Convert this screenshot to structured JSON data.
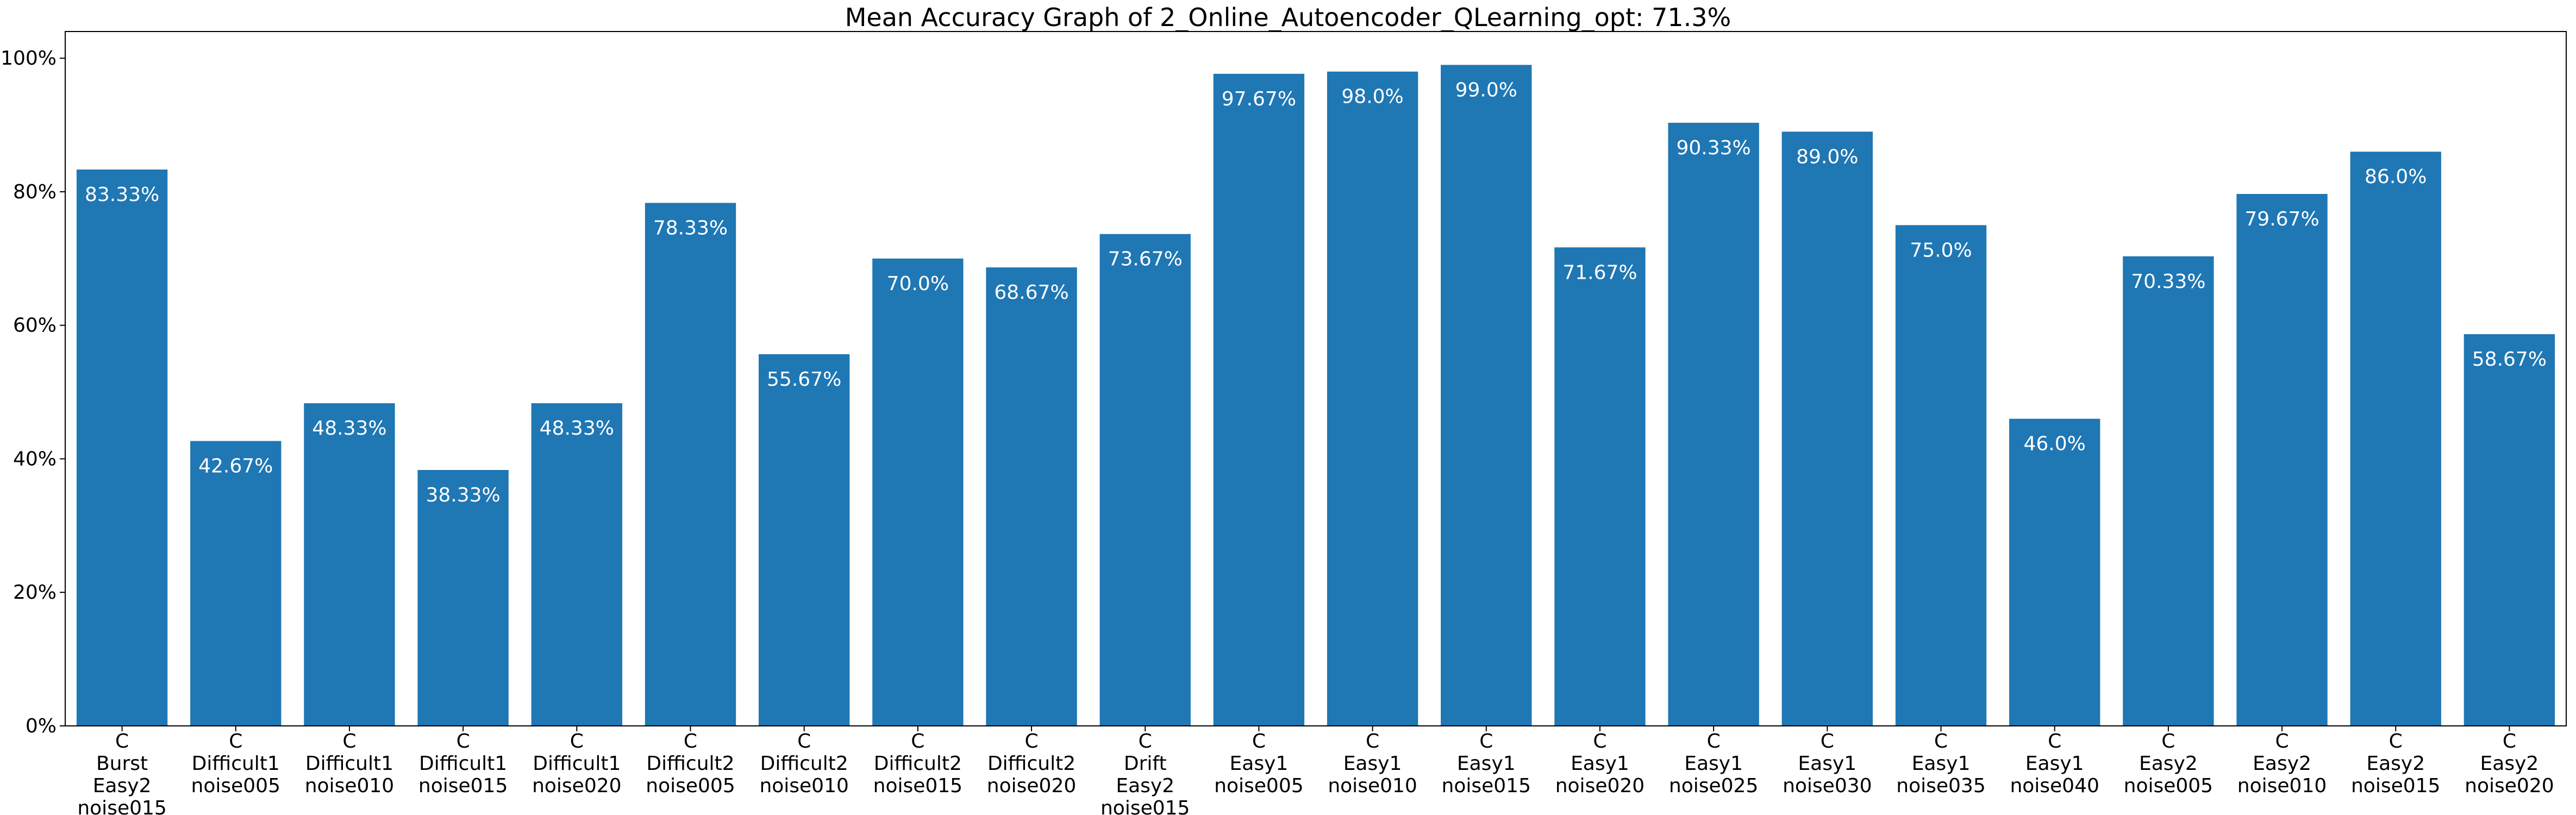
{
  "chart_data": {
    "type": "bar",
    "title": "Mean Accuracy Graph of 2_Online_Autoencoder_QLearning_opt: 71.3%",
    "xlabel": "",
    "ylabel": "",
    "ylim": [
      0,
      104
    ],
    "yticks": [
      0,
      20,
      40,
      60,
      80,
      100
    ],
    "ytick_labels": [
      "0%",
      "20%",
      "40%",
      "60%",
      "80%",
      "100%"
    ],
    "grid": false,
    "bar_color": "#1f77b4",
    "categories": [
      [
        "C",
        "Burst",
        "Easy2",
        "noise015"
      ],
      [
        "C",
        "Difficult1",
        "noise005"
      ],
      [
        "C",
        "Difficult1",
        "noise010"
      ],
      [
        "C",
        "Difficult1",
        "noise015"
      ],
      [
        "C",
        "Difficult1",
        "noise020"
      ],
      [
        "C",
        "Difficult2",
        "noise005"
      ],
      [
        "C",
        "Difficult2",
        "noise010"
      ],
      [
        "C",
        "Difficult2",
        "noise015"
      ],
      [
        "C",
        "Difficult2",
        "noise020"
      ],
      [
        "C",
        "Drift",
        "Easy2",
        "noise015"
      ],
      [
        "C",
        "Easy1",
        "noise005"
      ],
      [
        "C",
        "Easy1",
        "noise010"
      ],
      [
        "C",
        "Easy1",
        "noise015"
      ],
      [
        "C",
        "Easy1",
        "noise020"
      ],
      [
        "C",
        "Easy1",
        "noise025"
      ],
      [
        "C",
        "Easy1",
        "noise030"
      ],
      [
        "C",
        "Easy1",
        "noise035"
      ],
      [
        "C",
        "Easy1",
        "noise040"
      ],
      [
        "C",
        "Easy2",
        "noise005"
      ],
      [
        "C",
        "Easy2",
        "noise010"
      ],
      [
        "C",
        "Easy2",
        "noise015"
      ],
      [
        "C",
        "Easy2",
        "noise020"
      ]
    ],
    "values": [
      83.33,
      42.67,
      48.33,
      38.33,
      48.33,
      78.33,
      55.67,
      70.0,
      68.67,
      73.67,
      97.67,
      98.0,
      99.0,
      71.67,
      90.33,
      89.0,
      75.0,
      46.0,
      70.33,
      79.67,
      86.0,
      58.67
    ],
    "value_labels": [
      "83.33%",
      "42.67%",
      "48.33%",
      "38.33%",
      "48.33%",
      "78.33%",
      "55.67%",
      "70.0%",
      "68.67%",
      "73.67%",
      "97.67%",
      "98.0%",
      "99.0%",
      "71.67%",
      "90.33%",
      "89.0%",
      "75.0%",
      "46.0%",
      "70.33%",
      "79.67%",
      "86.0%",
      "58.67%"
    ]
  }
}
